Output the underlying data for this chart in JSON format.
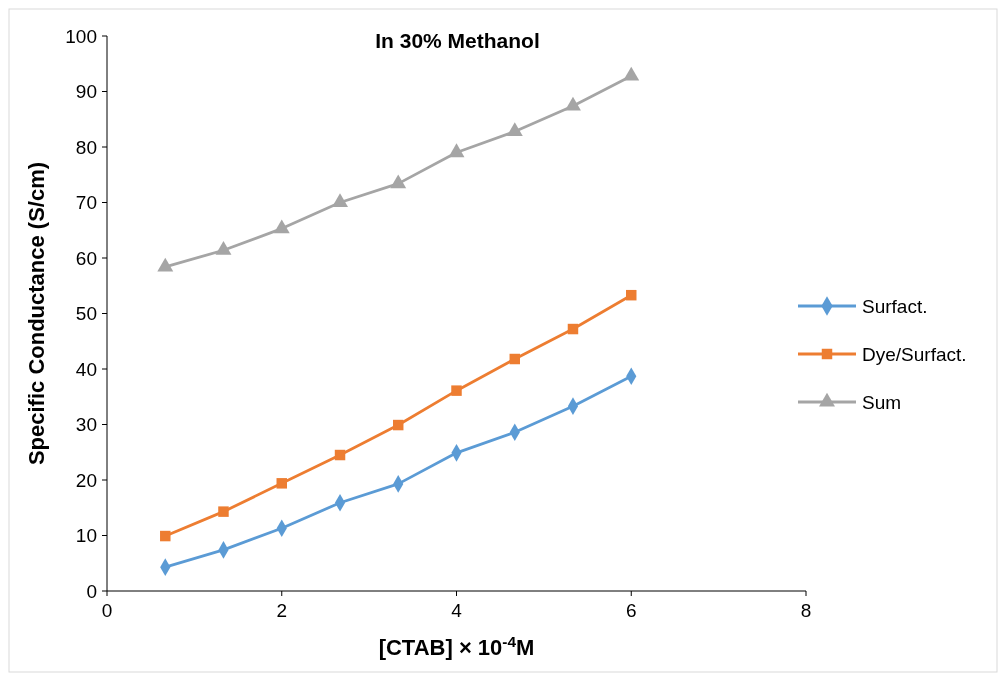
{
  "chart_data": {
    "type": "line",
    "title": "In 30% Methanol",
    "xlabel": "[CTAB] × 10$^{-4}$M",
    "ylabel": "Specific Conductance (S/cm)",
    "x": [
      0.667,
      1.333,
      2,
      2.667,
      3.333,
      4,
      4.667,
      5.333,
      6
    ],
    "xlim": [
      0,
      8
    ],
    "xticks": [
      0,
      2,
      4,
      6,
      8
    ],
    "ylim": [
      0,
      100
    ],
    "yticks": [
      0,
      10,
      20,
      30,
      40,
      50,
      60,
      70,
      80,
      90,
      100
    ],
    "grid": false,
    "legend": "right",
    "line_style": "solid",
    "series": [
      {
        "name": "Surfact.",
        "color": "#5b9bd5",
        "marker": "diamond",
        "values": [
          4.3,
          7.4,
          11.3,
          15.9,
          19.3,
          24.9,
          28.6,
          33.3,
          38.7
        ]
      },
      {
        "name": "Dye/Surfact.",
        "color": "#ed7d31",
        "marker": "square",
        "values": [
          9.9,
          14.3,
          19.4,
          24.5,
          29.9,
          36.1,
          41.8,
          47.2,
          53.3
        ]
      },
      {
        "name": "Sum",
        "color": "#a5a5a5",
        "marker": "triangle",
        "values": [
          58.4,
          61.4,
          65.3,
          70.0,
          73.4,
          79.0,
          82.8,
          87.4,
          92.8
        ]
      }
    ]
  }
}
